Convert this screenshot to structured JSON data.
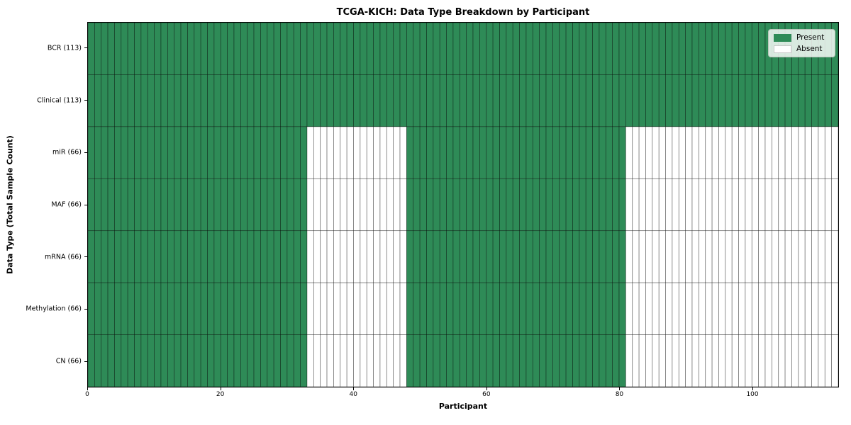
{
  "chart_data": {
    "type": "heatmap",
    "title": "TCGA-KICH: Data Type Breakdown by Participant",
    "xlabel": "Participant",
    "ylabel": "Data Type (Total Sample Count)",
    "n_participants": 113,
    "x_ticks": [
      0,
      20,
      40,
      60,
      80,
      100
    ],
    "rows": [
      {
        "label": "BCR (113)",
        "total_samples": 113,
        "present_ranges": [
          [
            0,
            113
          ]
        ]
      },
      {
        "label": "Clinical (113)",
        "total_samples": 113,
        "present_ranges": [
          [
            0,
            113
          ]
        ]
      },
      {
        "label": "miR (66)",
        "total_samples": 66,
        "present_ranges": [
          [
            0,
            33
          ],
          [
            48,
            81
          ]
        ]
      },
      {
        "label": "MAF (66)",
        "total_samples": 66,
        "present_ranges": [
          [
            0,
            33
          ],
          [
            48,
            81
          ]
        ]
      },
      {
        "label": "mRNA (66)",
        "total_samples": 66,
        "present_ranges": [
          [
            0,
            33
          ],
          [
            48,
            81
          ]
        ]
      },
      {
        "label": "Methylation (66)",
        "total_samples": 66,
        "present_ranges": [
          [
            0,
            33
          ],
          [
            48,
            81
          ]
        ]
      },
      {
        "label": "CN (66)",
        "total_samples": 66,
        "present_ranges": [
          [
            0,
            33
          ],
          [
            48,
            81
          ]
        ]
      }
    ],
    "legend": [
      {
        "label": "Present",
        "color": "#2e8b57"
      },
      {
        "label": "Absent",
        "color": "#ffffff"
      }
    ],
    "colors": {
      "present": "#2e8b57",
      "absent": "#ffffff",
      "cell_edge": "rgba(0,0,0,0.5)",
      "spine": "#000000"
    },
    "legend_position": "upper right",
    "grid": "cell-borders"
  }
}
